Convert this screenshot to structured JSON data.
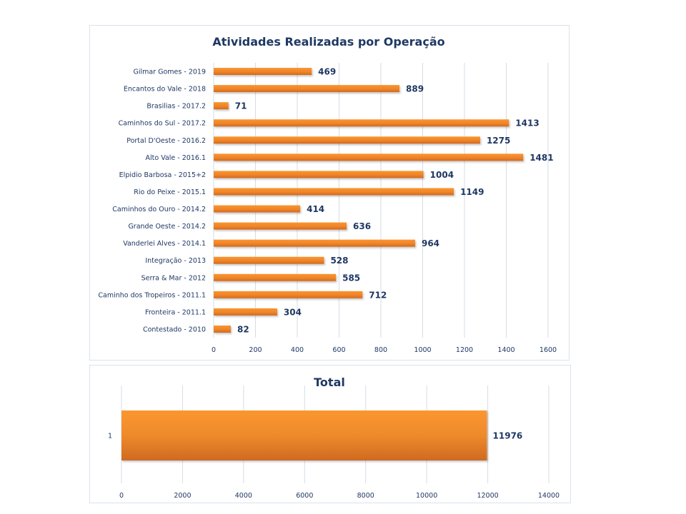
{
  "chart_data": [
    {
      "type": "bar",
      "orientation": "horizontal",
      "title": "Atividades Realizadas por Operação",
      "xlabel": "",
      "ylabel": "",
      "categories": [
        "Gilmar Gomes - 2019",
        "Encantos do Vale - 2018",
        "Brasilias - 2017.2",
        "Caminhos do Sul - 2017.2",
        "Portal D'Oeste - 2016.2",
        "Alto Vale - 2016.1",
        "Elpidio Barbosa - 2015+2",
        "Rio do Peixe - 2015.1",
        "Caminhos do Ouro - 2014.2",
        "Grande Oeste - 2014.2",
        "Vanderlei Alves - 2014.1",
        "Integração - 2013",
        "Serra & Mar - 2012",
        "Caminho dos Tropeiros - 2011.1",
        "Fronteira - 2011.1",
        "Contestado - 2010"
      ],
      "values": [
        469,
        889,
        71,
        1413,
        1275,
        1481,
        1004,
        1149,
        414,
        636,
        964,
        528,
        585,
        712,
        304,
        82
      ],
      "xlim": [
        0,
        1600
      ],
      "xticks": [
        "0",
        "200",
        "400",
        "600",
        "800",
        "1000",
        "1200",
        "1400",
        "1600"
      ],
      "grid": true,
      "legend": "none",
      "bar_color": "#f0842a"
    },
    {
      "type": "bar",
      "orientation": "horizontal",
      "title": "Total",
      "xlabel": "",
      "ylabel": "",
      "categories": [
        "1"
      ],
      "values": [
        11976
      ],
      "xlim": [
        0,
        14000
      ],
      "xticks": [
        "0",
        "2000",
        "4000",
        "6000",
        "8000",
        "10000",
        "12000",
        "14000"
      ],
      "grid": true,
      "legend": "none",
      "bar_color": "#f0842a"
    }
  ]
}
